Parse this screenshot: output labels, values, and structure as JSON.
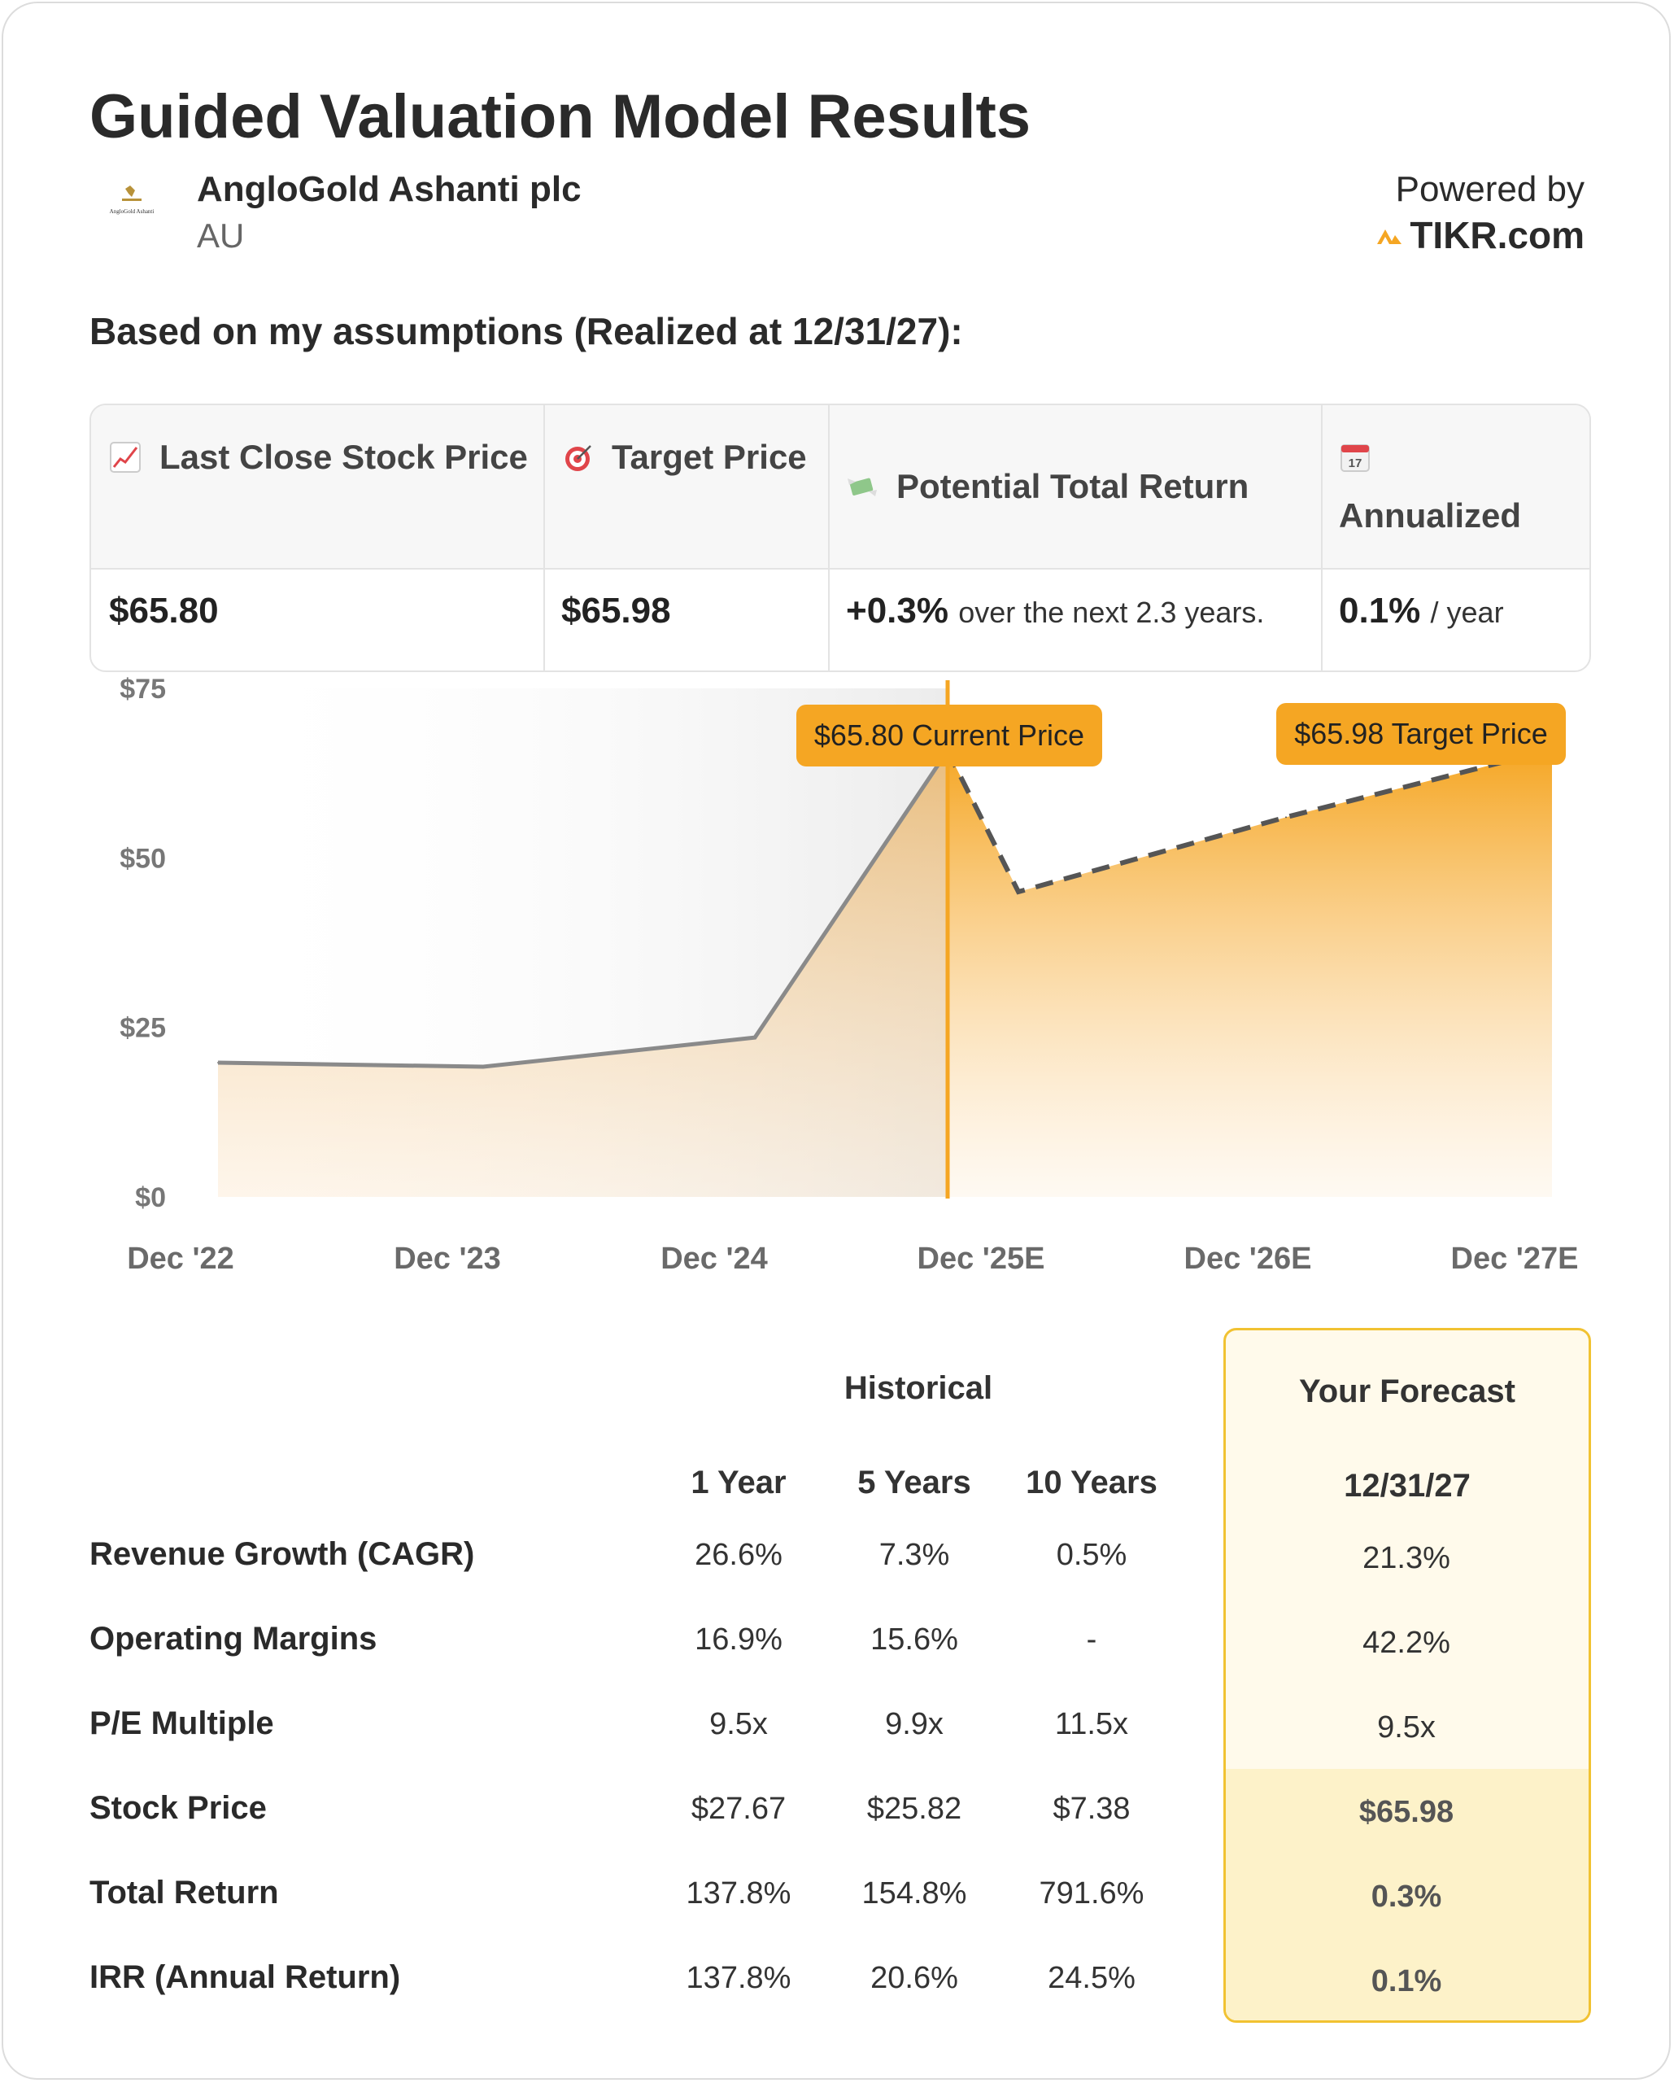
{
  "title": "Guided Valuation Model Results",
  "company": {
    "name": "AngloGold Ashanti plc",
    "ticker": "AU",
    "logo_text": "AngloGold Ashanti"
  },
  "powered": {
    "label": "Powered by",
    "brand": "TIKR.com",
    "brand_color": "#f5a623"
  },
  "subtitle": "Based on my assumptions (Realized at 12/31/27):",
  "summary": {
    "headers": [
      {
        "icon": "chart-increasing-icon",
        "label": "Last Close Stock Price"
      },
      {
        "icon": "target-icon",
        "label": "Target Price"
      },
      {
        "icon": "money-with-wings-icon",
        "label": "Potential Total Return"
      },
      {
        "icon": "calendar-icon",
        "label": "Annualized",
        "icon_text": "17"
      }
    ],
    "last_close": "$65.80",
    "target": "$65.98",
    "total_return": "+0.3%",
    "total_return_note": "over the next 2.3 years.",
    "annualized": "0.1%",
    "annualized_note": "/ year"
  },
  "chart_data": {
    "type": "area",
    "x": [
      "Dec '22",
      "Dec '23",
      "Dec '24",
      "Dec '25E",
      "Dec '26E",
      "Dec '27E"
    ],
    "y_ticks": [
      "$0",
      "$25",
      "$50",
      "$75"
    ],
    "ylim": [
      0,
      75
    ],
    "historical": [
      {
        "x": "Dec '22",
        "y": 19.8
      },
      {
        "x": "Dec '23",
        "y": 19.2
      },
      {
        "x": "Dec '24",
        "y": 23.5
      },
      {
        "x": "Current",
        "y": 65.8
      }
    ],
    "forecast": [
      {
        "x": "Current",
        "y": 65.8
      },
      {
        "x": "Dec '25E",
        "y": 45.0
      },
      {
        "x": "Dec '26E",
        "y": 56.0
      },
      {
        "x": "Dec '27E",
        "y": 65.98
      }
    ],
    "current_label": "$65.80 Current Price",
    "target_label": "$65.98 Target Price",
    "accent": "#f5a623",
    "historical_line_color": "#8a8a8a"
  },
  "table": {
    "historical_label": "Historical",
    "forecast_label": "Your Forecast",
    "columns": [
      "1 Year",
      "5 Years",
      "10 Years"
    ],
    "forecast_date": "12/31/27",
    "rows": [
      {
        "label": "Revenue Growth (CAGR)",
        "values": [
          "26.6%",
          "7.3%",
          "0.5%"
        ],
        "forecast": "21.3%"
      },
      {
        "label": "Operating Margins",
        "values": [
          "16.9%",
          "15.6%",
          "-"
        ],
        "forecast": "42.2%"
      },
      {
        "label": "P/E Multiple",
        "values": [
          "9.5x",
          "9.9x",
          "11.5x"
        ],
        "forecast": "9.5x"
      },
      {
        "label": "Stock Price",
        "values": [
          "$27.67",
          "$25.82",
          "$7.38"
        ],
        "forecast": "$65.98"
      },
      {
        "label": "Total Return",
        "values": [
          "137.8%",
          "154.8%",
          "791.6%"
        ],
        "forecast": "0.3%"
      },
      {
        "label": "IRR (Annual Return)",
        "values": [
          "137.8%",
          "20.6%",
          "24.5%"
        ],
        "forecast": "0.1%"
      }
    ]
  }
}
